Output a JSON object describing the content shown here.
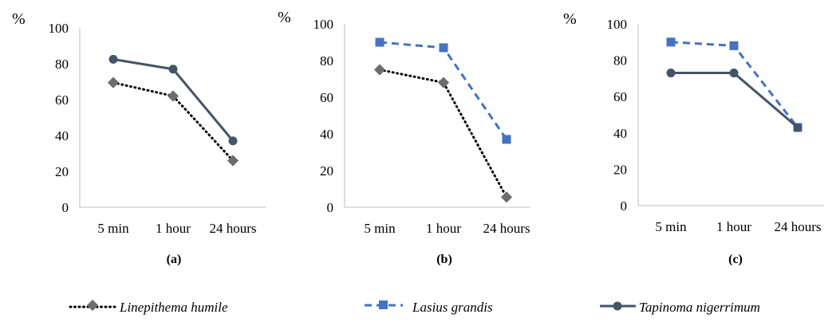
{
  "unit_label": "%",
  "legend": [
    {
      "name": "Linepithema humile",
      "style": "dotted",
      "marker": "diamond",
      "color": "#000000",
      "marker_color": "#6d6d6d"
    },
    {
      "name": "Lasius grandis",
      "style": "dashed",
      "marker": "square",
      "color": "#4472c4",
      "marker_color": "#4472c4"
    },
    {
      "name": "Tapinoma nigerrimum",
      "style": "solid",
      "marker": "circle",
      "color": "#44546a",
      "marker_color": "#44546a"
    }
  ],
  "chart_data": [
    {
      "type": "line",
      "caption": "(a)",
      "ylabel": "%",
      "categories": [
        "5 min",
        "1 hour",
        "24 hours"
      ],
      "ylim": [
        0,
        100
      ],
      "yticks": [
        0,
        20,
        40,
        60,
        80,
        100
      ],
      "series": [
        {
          "name": "Linepithema humile",
          "values": [
            69.5,
            62,
            26
          ]
        },
        {
          "name": "Tapinoma nigerrimum",
          "values": [
            82.5,
            77,
            37
          ]
        }
      ]
    },
    {
      "type": "line",
      "caption": "(b)",
      "ylabel": "%",
      "categories": [
        "5 min",
        "1 hour",
        "24 hours"
      ],
      "ylim": [
        0,
        100
      ],
      "yticks": [
        0,
        20,
        40,
        60,
        80,
        100
      ],
      "series": [
        {
          "name": "Lasius grandis",
          "values": [
            90,
            87,
            37
          ]
        },
        {
          "name": "Linepithema humile",
          "values": [
            75,
            68,
            5.5
          ]
        }
      ]
    },
    {
      "type": "line",
      "caption": "(c)",
      "ylabel": "%",
      "categories": [
        "5 min",
        "1 hour",
        "24 hours"
      ],
      "ylim": [
        0,
        100
      ],
      "yticks": [
        0,
        20,
        40,
        60,
        80,
        100
      ],
      "series": [
        {
          "name": "Lasius grandis",
          "values": [
            90,
            88,
            43
          ]
        },
        {
          "name": "Tapinoma nigerrimum",
          "values": [
            73,
            73,
            43
          ]
        }
      ]
    }
  ]
}
